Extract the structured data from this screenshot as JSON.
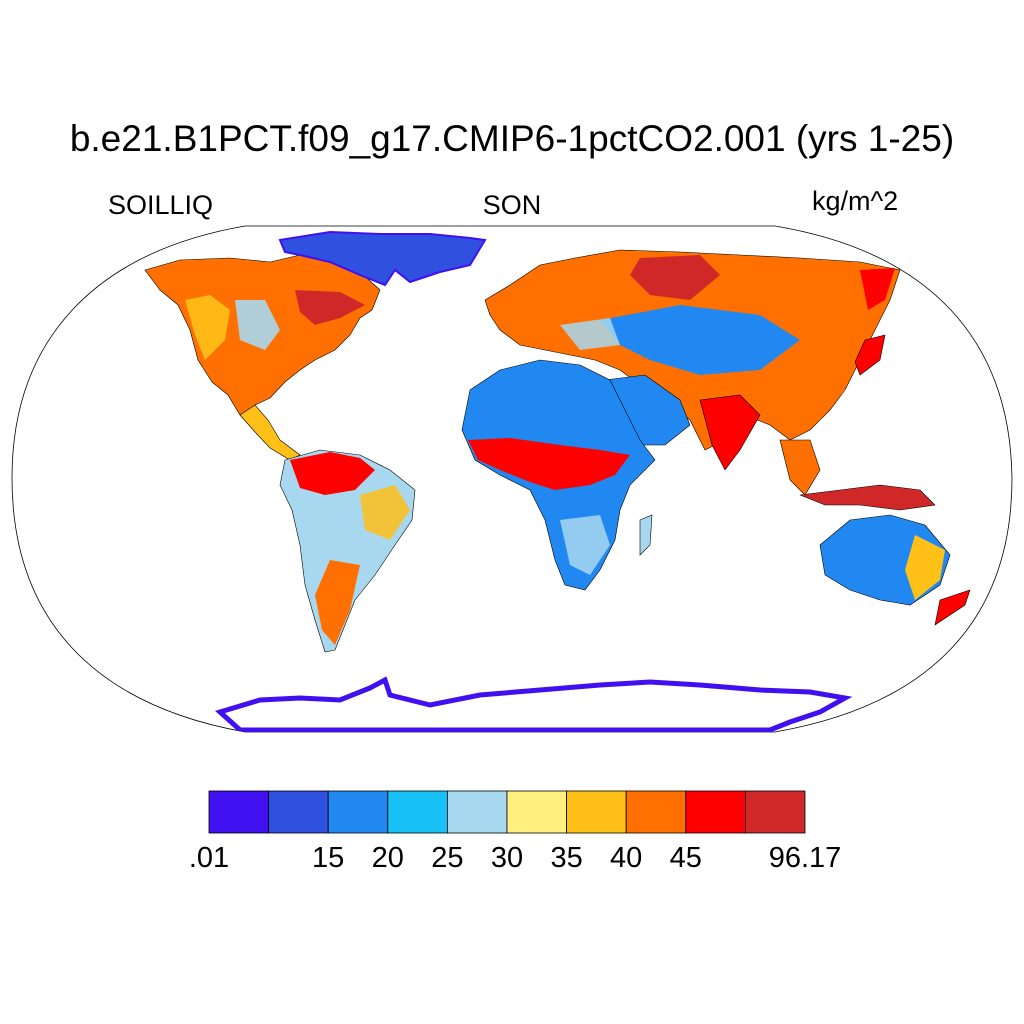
{
  "title": "b.e21.B1PCT.f09_g17.CMIP6-1pctCO2.001 (yrs 1-25)",
  "left_label": "SOILLIQ",
  "center_label": "SON",
  "right_label": "kg/m^2",
  "colorbar": {
    "colors": [
      "#4010f0",
      "#3050e0",
      "#2088f0",
      "#18c0f8",
      "#a8d8f0",
      "#fff080",
      "#ffc018",
      "#ff7000",
      "#ff0000",
      "#d02828"
    ],
    "tick_labels": [
      ".01",
      "15",
      "20",
      "25",
      "30",
      "35",
      "40",
      "45",
      "96.17"
    ]
  }
}
